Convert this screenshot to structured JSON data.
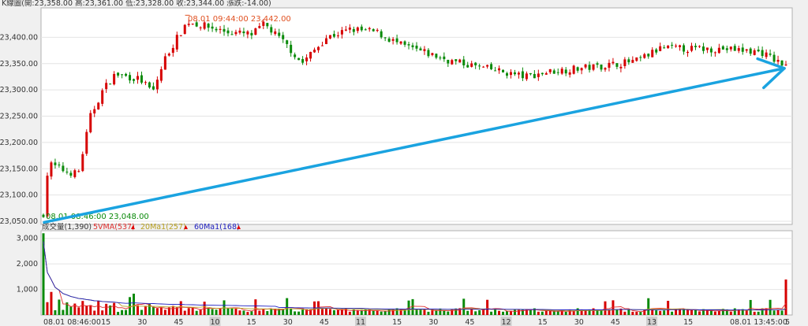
{
  "header": {
    "title": "K線圖(開:23,358.00 高:23,361.00 低:23,328.00 收:23,344.00 漲跌:-14.00)"
  },
  "annotations": {
    "high": "08.01 09:44:00  23,442.00",
    "low": "08.01 08:46:00  23,048.00"
  },
  "volume_legend": {
    "volume": "成交量(1,390)",
    "ma5": "5VMA(537)",
    "ma20": "20Ma1(257)",
    "ma60": "60Ma1(168)"
  },
  "x_axis": {
    "labels": [
      "08.01 08:46:00",
      "15",
      "30",
      "45",
      "10",
      "15",
      "30",
      "45",
      "11",
      "15",
      "30",
      "45",
      "12",
      "15",
      "30",
      "45",
      "13",
      "15",
      "08.01 13:45:00",
      "5"
    ]
  },
  "colors": {
    "up": "#d60000",
    "down": "#0a8a0a",
    "arrow": "#1aa3e0",
    "ma5": "#e03030",
    "ma20": "#b8a020",
    "ma60": "#2020c0"
  },
  "chart_data": [
    {
      "type": "candlestick",
      "title": "K線圖",
      "ylim": [
        23050,
        23450
      ],
      "yticks": [
        "23,050.00",
        "23,100.00",
        "23,150.00",
        "23,200.00",
        "23,250.00",
        "23,300.00",
        "23,350.00",
        "23,400.00"
      ],
      "x_range": [
        "08:46",
        "13:45"
      ],
      "close_path": [
        {
          "t": "08:46",
          "v": 23060
        },
        {
          "t": "08:48",
          "v": 23160
        },
        {
          "t": "08:55",
          "v": 23145
        },
        {
          "t": "09:00",
          "v": 23140
        },
        {
          "t": "09:05",
          "v": 23250
        },
        {
          "t": "09:10",
          "v": 23300
        },
        {
          "t": "09:15",
          "v": 23330
        },
        {
          "t": "09:25",
          "v": 23320
        },
        {
          "t": "09:30",
          "v": 23295
        },
        {
          "t": "09:35",
          "v": 23360
        },
        {
          "t": "09:40",
          "v": 23400
        },
        {
          "t": "09:44",
          "v": 23430
        },
        {
          "t": "10:00",
          "v": 23410
        },
        {
          "t": "10:10",
          "v": 23405
        },
        {
          "t": "10:15",
          "v": 23425
        },
        {
          "t": "10:25",
          "v": 23380
        },
        {
          "t": "10:30",
          "v": 23350
        },
        {
          "t": "10:40",
          "v": 23400
        },
        {
          "t": "10:50",
          "v": 23415
        },
        {
          "t": "11:00",
          "v": 23410
        },
        {
          "t": "11:10",
          "v": 23385
        },
        {
          "t": "11:20",
          "v": 23370
        },
        {
          "t": "11:30",
          "v": 23355
        },
        {
          "t": "11:40",
          "v": 23345
        },
        {
          "t": "12:00",
          "v": 23325
        },
        {
          "t": "12:10",
          "v": 23335
        },
        {
          "t": "12:20",
          "v": 23340
        },
        {
          "t": "12:30",
          "v": 23345
        },
        {
          "t": "12:45",
          "v": 23355
        },
        {
          "t": "12:55",
          "v": 23380
        },
        {
          "t": "13:05",
          "v": 23378
        },
        {
          "t": "13:20",
          "v": 23378
        },
        {
          "t": "13:35",
          "v": 23372
        },
        {
          "t": "13:45",
          "v": 23344
        }
      ],
      "high": {
        "t": "09:44",
        "v": 23442
      },
      "low": {
        "t": "08:46",
        "v": 23048
      },
      "arrow": {
        "from": {
          "t": "08:46",
          "v": 23048
        },
        "to": {
          "t": "13:45",
          "v": 23344
        }
      }
    },
    {
      "type": "bar",
      "title": "成交量",
      "ylim": [
        0,
        3300
      ],
      "yticks": [
        "1,000",
        "2,000",
        "3,000"
      ],
      "last_volume": 1390,
      "series": [
        {
          "name": "5VMA",
          "last": 537
        },
        {
          "name": "20Ma1",
          "last": 257
        },
        {
          "name": "60Ma1",
          "last": 168
        }
      ]
    }
  ]
}
